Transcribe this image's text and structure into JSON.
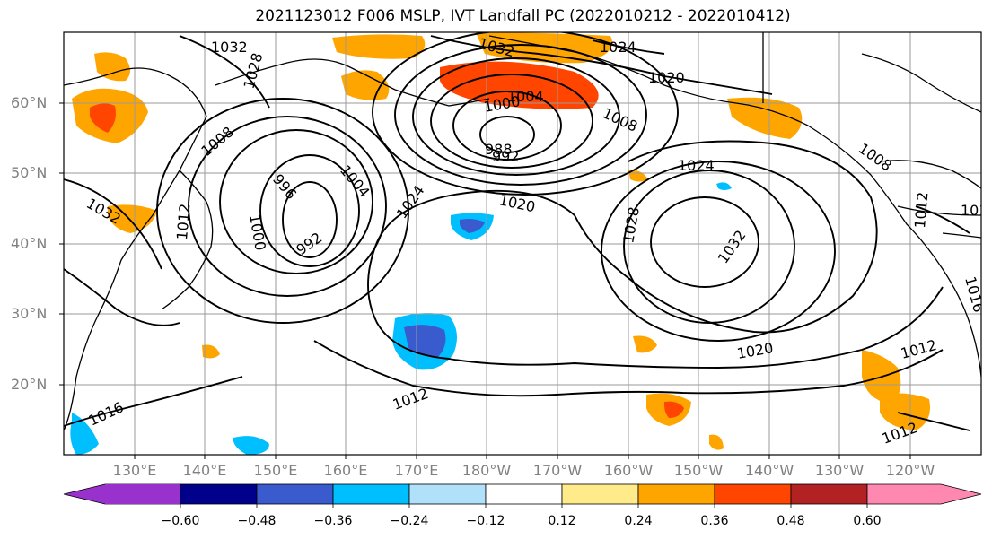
{
  "title": "2021123012 F006 MSLP, IVT Landfall PC (2022010212 - 2022010412)",
  "lat_labels": [
    "60°N",
    "50°N",
    "40°N",
    "30°N",
    "20°N"
  ],
  "lon_labels": [
    "130°E",
    "140°E",
    "150°E",
    "160°E",
    "170°E",
    "180°W",
    "170°W",
    "160°W",
    "150°W",
    "140°W",
    "130°W",
    "120°W"
  ],
  "colorbar": {
    "ticks": [
      "−0.60",
      "−0.48",
      "−0.36",
      "−0.24",
      "−0.12",
      "0.12",
      "0.24",
      "0.36",
      "0.48",
      "0.60"
    ],
    "colors": [
      "#9932cc",
      "#00008b",
      "#3a5bcd",
      "#00bfff",
      "#b0e0fa",
      "#ffffff",
      "#ffeb8a",
      "#ffa500",
      "#ff4500",
      "#b22222",
      "#ff88b0"
    ]
  },
  "contour_labels": [
    "1032",
    "1028",
    "1024",
    "1020",
    "1004",
    "1008",
    "1008",
    "1012",
    "1016",
    "1020",
    "1024",
    "1028",
    "1032",
    "996",
    "1000",
    "992",
    "1004",
    "1000",
    "988",
    "992",
    "1020",
    "1012",
    "1016",
    "1012",
    "1020",
    "1012",
    "1024",
    "1028",
    "1032",
    "1032",
    "1016",
    "1012",
    "1012",
    "1008",
    "988",
    "1032",
    "1024",
    "1012"
  ]
}
